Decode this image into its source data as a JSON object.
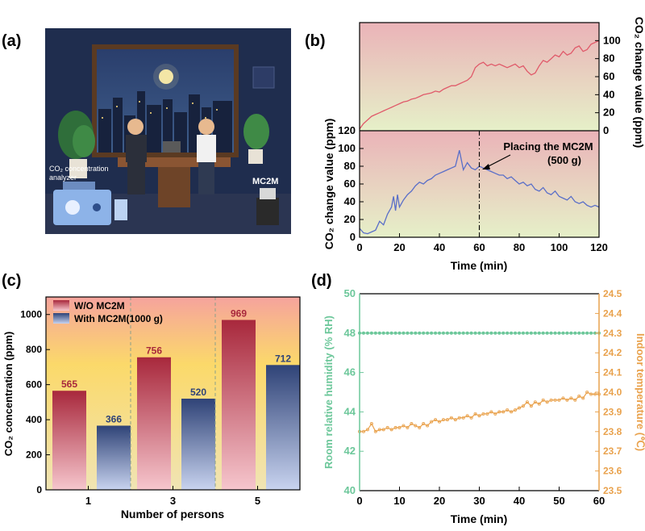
{
  "panels": {
    "a": "(a)",
    "b": "(b)",
    "c": "(c)",
    "d": "(d)"
  },
  "illustration": {
    "analyzer_label": "CO₂ concentration analyzer",
    "device_label": "MC2M",
    "colors": {
      "bg": "#1f2d4e",
      "window": "#27406f",
      "moon": "#f4e7a6",
      "desk": "#7a4a2a"
    }
  },
  "chart_b": {
    "top": {
      "ylabel": "CO₂ change value (ppm)",
      "ylim": [
        0,
        120
      ],
      "yticks": [
        "0",
        "20",
        "40",
        "60",
        "80",
        "100"
      ],
      "color": "#e05a6a",
      "x": [
        0,
        2,
        4,
        6,
        8,
        10,
        12,
        14,
        16,
        18,
        20,
        22,
        24,
        26,
        28,
        30,
        32,
        34,
        36,
        38,
        40,
        42,
        44,
        46,
        48,
        50,
        52,
        54,
        56,
        58,
        60,
        62,
        64,
        66,
        68,
        70,
        72,
        74,
        76,
        78,
        80,
        82,
        84,
        86,
        88,
        90,
        92,
        94,
        96,
        98,
        100,
        102,
        104,
        106,
        108,
        110,
        112,
        114,
        116,
        118,
        120
      ],
      "values": [
        2,
        8,
        12,
        16,
        18,
        20,
        22,
        24,
        26,
        28,
        30,
        32,
        33,
        35,
        36,
        38,
        40,
        41,
        42,
        44,
        43,
        46,
        48,
        50,
        50,
        52,
        54,
        56,
        60,
        70,
        74,
        76,
        72,
        74,
        72,
        74,
        72,
        70,
        72,
        74,
        70,
        72,
        66,
        62,
        64,
        72,
        78,
        76,
        80,
        84,
        82,
        88,
        84,
        86,
        92,
        94,
        88,
        90,
        96,
        98,
        100
      ]
    },
    "bottom": {
      "ylabel": "CO₂ change value (ppm)",
      "xlabel": "Time (min)",
      "ylim": [
        0,
        120
      ],
      "xlim": [
        0,
        120
      ],
      "xticks": [
        "0",
        "20",
        "40",
        "60",
        "80",
        "100",
        "120"
      ],
      "yticks": [
        "0",
        "20",
        "40",
        "60",
        "80",
        "100",
        "120"
      ],
      "color": "#5a6fc8",
      "annotation": "Placing the MC2M\n(500 g)",
      "annotation_x": 60,
      "x": [
        0,
        2,
        4,
        6,
        8,
        10,
        12,
        14,
        16,
        17,
        18,
        19,
        20,
        22,
        24,
        26,
        28,
        30,
        32,
        34,
        36,
        38,
        40,
        42,
        44,
        46,
        48,
        50,
        52,
        54,
        56,
        58,
        60,
        62,
        64,
        66,
        68,
        70,
        72,
        74,
        76,
        78,
        80,
        82,
        84,
        86,
        88,
        90,
        92,
        94,
        96,
        98,
        100,
        102,
        104,
        106,
        108,
        110,
        112,
        114,
        116,
        118,
        120
      ],
      "values": [
        10,
        5,
        4,
        6,
        8,
        18,
        14,
        26,
        34,
        46,
        30,
        48,
        34,
        42,
        48,
        52,
        58,
        62,
        60,
        64,
        66,
        70,
        72,
        74,
        76,
        78,
        80,
        98,
        76,
        84,
        78,
        76,
        80,
        78,
        76,
        74,
        72,
        70,
        70,
        66,
        68,
        64,
        60,
        62,
        58,
        60,
        54,
        52,
        56,
        50,
        48,
        52,
        46,
        44,
        42,
        46,
        40,
        38,
        40,
        36,
        34,
        36,
        34
      ]
    }
  },
  "chart_c": {
    "type": "bar",
    "title": "",
    "xlabel": "Number of persons",
    "ylabel": "CO₂ concentration (ppm)",
    "ylim": [
      0,
      1100
    ],
    "yticks": [
      "0",
      "200",
      "400",
      "600",
      "800",
      "1000"
    ],
    "categories": [
      "1",
      "3",
      "5"
    ],
    "series": [
      {
        "name": "W/O MC2M",
        "values": [
          565,
          756,
          969
        ],
        "labels": [
          "565",
          "756",
          "969"
        ],
        "color": "#a8283c"
      },
      {
        "name": "With MC2M(1000 g)",
        "values": [
          366,
          520,
          712
        ],
        "labels": [
          "366",
          "520",
          "712"
        ],
        "color": "#2f4377"
      }
    ]
  },
  "chart_d": {
    "type": "line",
    "xlabel": "Time (min)",
    "ylabel_left": "Room relative humidity (% RH)",
    "ylabel_right": "Indoor temperature (℃)",
    "xlim": [
      0,
      60
    ],
    "ylim_left": [
      40,
      50
    ],
    "ylim_right": [
      23.5,
      24.5
    ],
    "xticks": [
      "0",
      "10",
      "20",
      "30",
      "40",
      "50",
      "60"
    ],
    "yticks_left": [
      "40",
      "42",
      "44",
      "46",
      "48",
      "50"
    ],
    "yticks_right": [
      "23.5",
      "23.6",
      "23.7",
      "23.8",
      "23.9",
      "24.0",
      "24.1",
      "24.2",
      "24.3",
      "24.4",
      "24.5"
    ],
    "humidity_color": "#6cc79a",
    "temperature_color": "#e9a24d",
    "humidity_value": 48,
    "temperature": {
      "x": [
        0,
        1,
        2,
        3,
        4,
        5,
        6,
        7,
        8,
        9,
        10,
        11,
        12,
        13,
        14,
        15,
        16,
        17,
        18,
        19,
        20,
        21,
        22,
        23,
        24,
        25,
        26,
        27,
        28,
        29,
        30,
        31,
        32,
        33,
        34,
        35,
        36,
        37,
        38,
        39,
        40,
        41,
        42,
        43,
        44,
        45,
        46,
        47,
        48,
        49,
        50,
        51,
        52,
        53,
        54,
        55,
        56,
        57,
        58,
        59,
        60
      ],
      "values": [
        23.8,
        23.8,
        23.81,
        23.84,
        23.8,
        23.81,
        23.81,
        23.82,
        23.81,
        23.82,
        23.82,
        23.83,
        23.82,
        23.84,
        23.83,
        23.82,
        23.84,
        23.83,
        23.85,
        23.86,
        23.85,
        23.86,
        23.86,
        23.87,
        23.86,
        23.87,
        23.87,
        23.88,
        23.87,
        23.89,
        23.88,
        23.89,
        23.89,
        23.9,
        23.89,
        23.9,
        23.9,
        23.91,
        23.9,
        23.91,
        23.92,
        23.93,
        23.95,
        23.93,
        23.95,
        23.94,
        23.96,
        23.95,
        23.96,
        23.96,
        23.96,
        23.97,
        23.96,
        23.97,
        23.96,
        23.98,
        23.97,
        24.0,
        23.99,
        23.99,
        23.99
      ]
    }
  }
}
